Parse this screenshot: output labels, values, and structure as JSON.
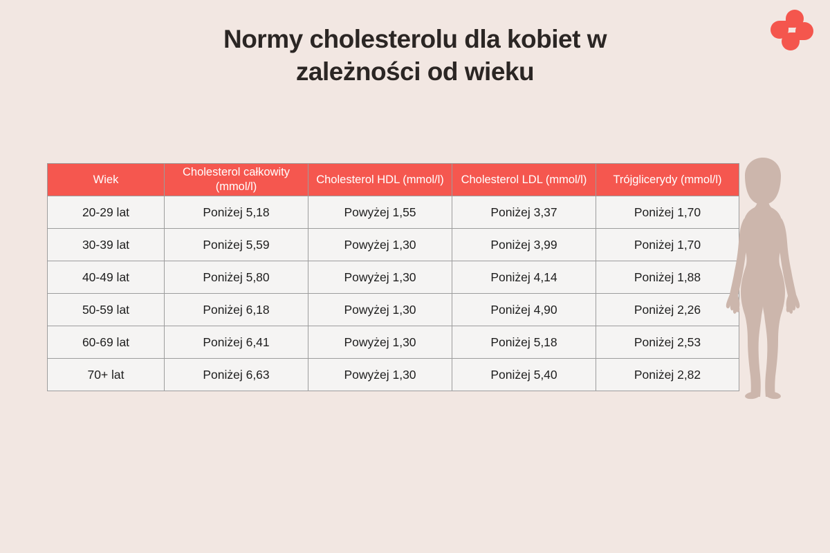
{
  "page": {
    "title": "Normy cholesterolu dla kobiet w zależności od wieku"
  },
  "logo": {
    "icon": "four-teardrop-pinwheel-logo",
    "color": "#f4564d"
  },
  "silhouette": {
    "icon": "standing-woman-silhouette",
    "color": "#ccb6ac"
  },
  "colors": {
    "background": "#f2e7e2",
    "header_accent": "#f5574f",
    "header_text": "#ffffff",
    "cell_background": "#f5f4f3",
    "cell_border": "#9c9c9c",
    "title_text": "#2b2624"
  },
  "chart_data": {
    "type": "table",
    "title": "Normy cholesterolu dla kobiet w zależności od wieku",
    "columns": [
      "Wiek",
      "Cholesterol całkowity (mmol/l)",
      "Cholesterol HDL (mmol/l)",
      "Cholesterol LDL (mmol/l)",
      "Trójglicerydy (mmol/l)"
    ],
    "rows": [
      [
        "20-29 lat",
        "Poniżej 5,18",
        "Powyżej 1,55",
        "Poniżej 3,37",
        "Poniżej 1,70"
      ],
      [
        "30-39 lat",
        "Poniżej 5,59",
        "Powyżej 1,30",
        "Poniżej 3,99",
        "Poniżej 1,70"
      ],
      [
        "40-49 lat",
        "Poniżej 5,80",
        "Powyżej 1,30",
        "Poniżej 4,14",
        "Poniżej 1,88"
      ],
      [
        "50-59 lat",
        "Poniżej 6,18",
        "Powyżej 1,30",
        "Poniżej 4,90",
        "Poniżej 2,26"
      ],
      [
        "60-69 lat",
        "Poniżej 6,41",
        "Powyżej 1,30",
        "Poniżej 5,18",
        "Poniżej 2,53"
      ],
      [
        "70+ lat",
        "Poniżej 6,63",
        "Powyżej 1,30",
        "Poniżej 5,40",
        "Poniżej 2,82"
      ]
    ]
  }
}
